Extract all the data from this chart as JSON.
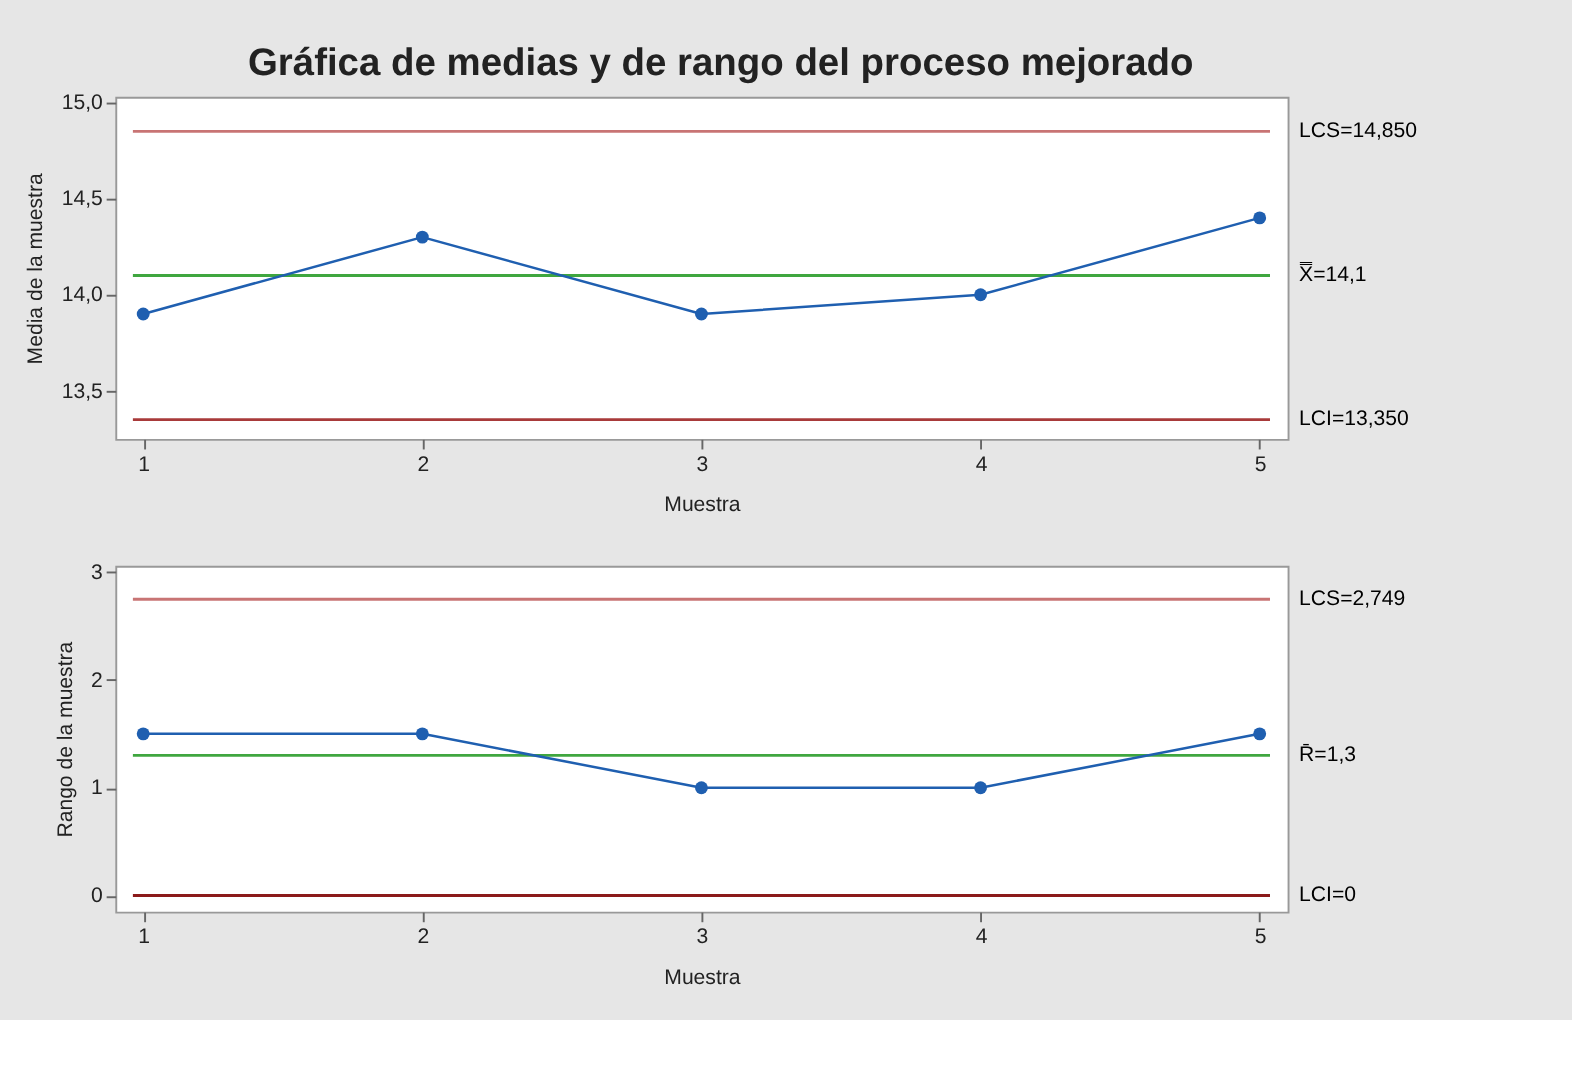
{
  "chart_data": [
    {
      "type": "line",
      "title": "Gráfica de medias y de rango del proceso mejorado",
      "xlabel": "Muestra",
      "ylabel": "Media de la muestra",
      "x": [
        1,
        2,
        3,
        4,
        5
      ],
      "series": [
        {
          "color": "#1f5fb0",
          "values": [
            13.9,
            14.3,
            13.9,
            14.0,
            14.4
          ]
        }
      ],
      "xlim": [
        0.9,
        5.1
      ],
      "xticks": [
        1,
        2,
        3,
        4,
        5
      ],
      "ylim": [
        13.25,
        15.03
      ],
      "yticks": [
        {
          "value": 13.5,
          "label": "13,5"
        },
        {
          "value": 14.0,
          "label": "14,0"
        },
        {
          "value": 14.5,
          "label": "14,5"
        },
        {
          "value": 15.0,
          "label": "15,0"
        }
      ],
      "ref_lines": [
        {
          "axis": "y",
          "value": 14.85,
          "label": "LCS=14,850",
          "color": "#c87474"
        },
        {
          "axis": "y",
          "value": 14.1,
          "label": "X̿=14,1",
          "color": "#3fa63f"
        },
        {
          "axis": "y",
          "value": 13.35,
          "label": "LCI=13,350",
          "color": "#a83a3a"
        }
      ],
      "grid": false,
      "marker": "circle",
      "line_style": "solid"
    },
    {
      "type": "line",
      "xlabel": "Muestra",
      "ylabel": "Rango de la muestra",
      "x": [
        1,
        2,
        3,
        4,
        5
      ],
      "series": [
        {
          "color": "#1f5fb0",
          "values": [
            1.5,
            1.5,
            1.0,
            1.0,
            1.5
          ]
        }
      ],
      "xlim": [
        0.9,
        5.1
      ],
      "xticks": [
        1,
        2,
        3,
        4,
        5
      ],
      "ylim": [
        -0.15,
        3.06
      ],
      "yticks": [
        0,
        1,
        2,
        3
      ],
      "ref_lines": [
        {
          "axis": "y",
          "value": 2.749,
          "label": "LCS=2,749",
          "color": "#c87474"
        },
        {
          "axis": "y",
          "value": 1.3,
          "label": "R̄=1,3",
          "color": "#3fa63f"
        },
        {
          "axis": "y",
          "value": 0,
          "label": "LCI=0",
          "color": "#8b1a1a"
        }
      ],
      "grid": false,
      "marker": "circle",
      "line_style": "solid"
    }
  ]
}
